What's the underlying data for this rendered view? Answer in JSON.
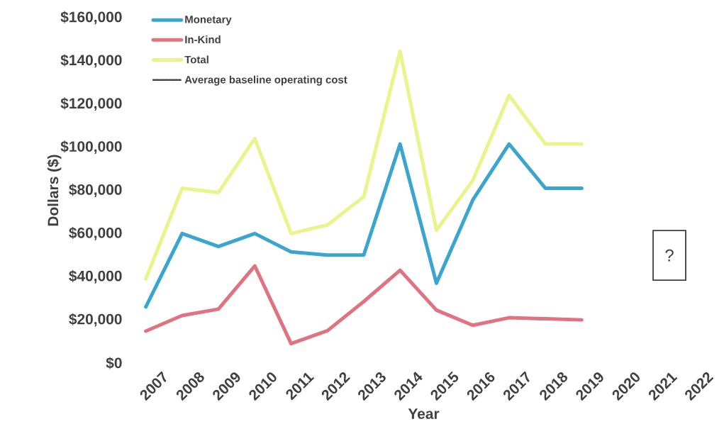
{
  "chart_data": {
    "type": "line",
    "xlabel": "Year",
    "ylabel": "Dollars ($)",
    "categories": [
      "2007",
      "2008",
      "2009",
      "2010",
      "2011",
      "2012",
      "2013",
      "2014",
      "2015",
      "2016",
      "2017",
      "2018",
      "2019",
      "2020",
      "2021",
      "2022"
    ],
    "series": [
      {
        "name": "Monetary",
        "color": "#3aa6cf",
        "line_style": "solid",
        "values": [
          26000,
          60000,
          54000,
          60000,
          51500,
          50000,
          50000,
          101500,
          37000,
          75500,
          101500,
          81000,
          81000,
          null,
          null,
          null
        ]
      },
      {
        "name": "In-Kind",
        "color": "#e0737f",
        "line_style": "solid",
        "values": [
          14800,
          22000,
          25000,
          45000,
          9000,
          15000,
          28500,
          43000,
          24500,
          17500,
          21000,
          20500,
          20000,
          null,
          null,
          null
        ]
      },
      {
        "name": "Total",
        "color": "#e9f58c",
        "line_style": "solid",
        "values": [
          39000,
          81000,
          79000,
          104000,
          60000,
          64000,
          77000,
          144500,
          61500,
          84500,
          124000,
          101500,
          101500,
          null,
          null,
          null
        ]
      },
      {
        "name": "Average baseline operating cost",
        "color": "#404040",
        "line_style": "dotted",
        "values": [
          null,
          null,
          null,
          null,
          null,
          null,
          null,
          null,
          null,
          null,
          null,
          null,
          null,
          null,
          null,
          null
        ]
      }
    ],
    "ylim": [
      0,
      160000
    ],
    "yticks": [
      {
        "value": 0,
        "label": "$0"
      },
      {
        "value": 20000,
        "label": "$20,000"
      },
      {
        "value": 40000,
        "label": "$40,000"
      },
      {
        "value": 60000,
        "label": "$60,000"
      },
      {
        "value": 80000,
        "label": "$80,000"
      },
      {
        "value": 100000,
        "label": "$100,000"
      },
      {
        "value": 120000,
        "label": "$120,000"
      },
      {
        "value": 140000,
        "label": "$140,000"
      },
      {
        "value": 160000,
        "label": "$160,000"
      }
    ],
    "grid": false,
    "legend": "top left",
    "marker": "none",
    "annotations": [
      "?"
    ]
  }
}
